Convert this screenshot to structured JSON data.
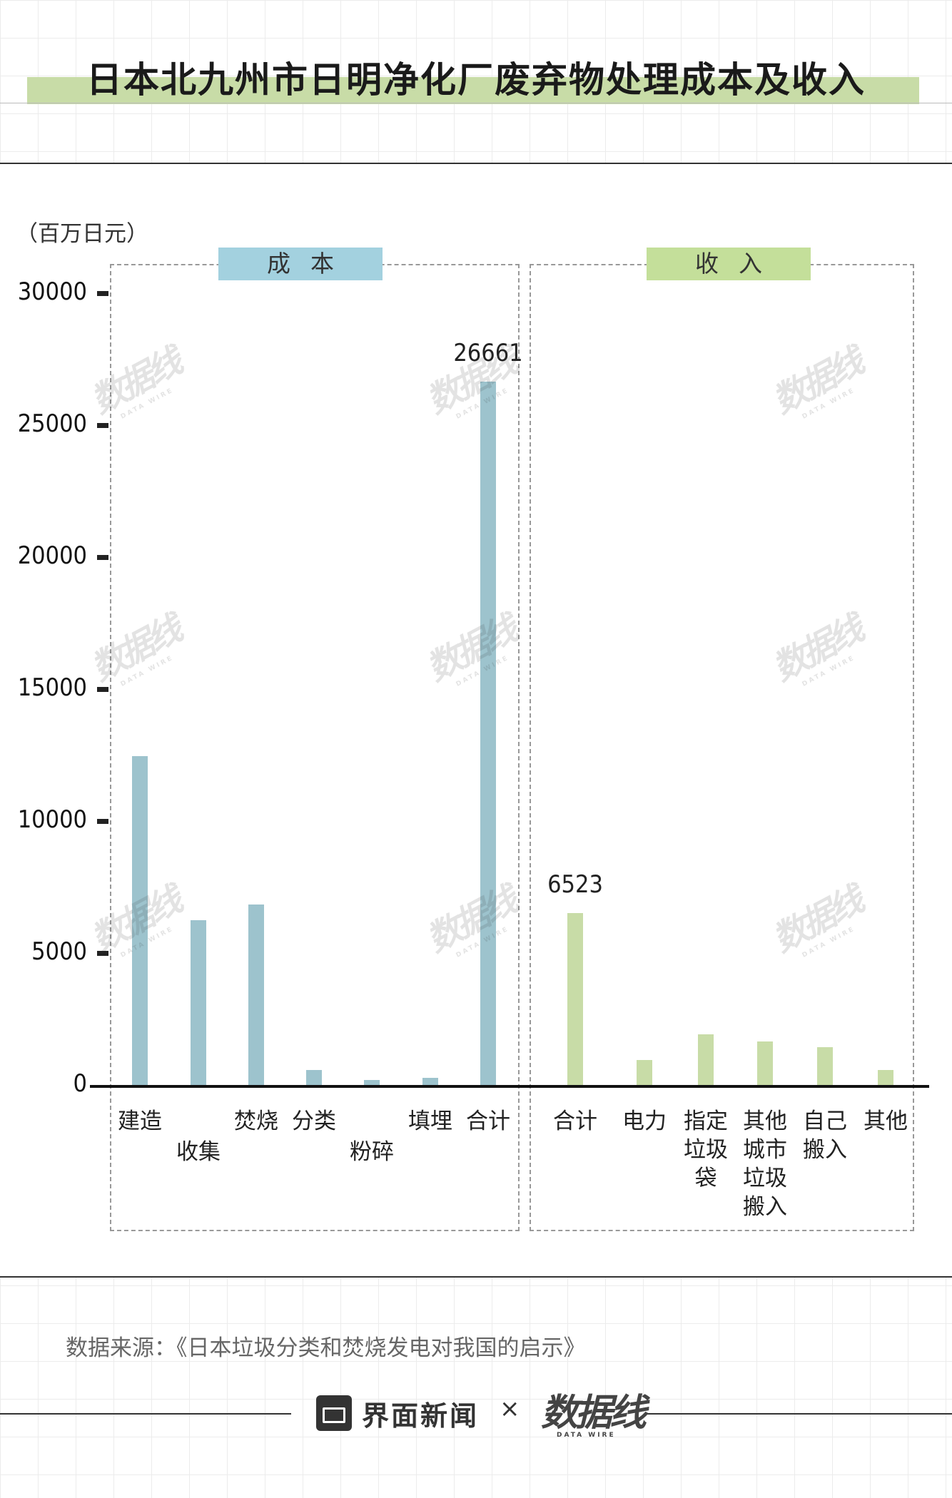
{
  "title": "日本北九州市日明净化厂废弃物处理成本及收入",
  "unit_label": "（百万日元）",
  "panels": {
    "cost": {
      "label": "成本",
      "color": "#9dc3cd",
      "header_color": "#a3d1df"
    },
    "income": {
      "label": "收入",
      "color": "#c8dca7",
      "header_color": "#c4df9a"
    }
  },
  "chart_data": {
    "type": "bar",
    "ylim": [
      0,
      30000
    ],
    "yticks": [
      "0",
      "5000",
      "10000",
      "15000",
      "20000",
      "25000",
      "30000"
    ],
    "grid": false,
    "series": [
      {
        "name": "成本",
        "categories": [
          "建造",
          "收集",
          "焚烧",
          "分类",
          "粉碎",
          "填埋",
          "合计"
        ],
        "values": [
          12450,
          6250,
          6850,
          560,
          200,
          280,
          26661
        ],
        "data_labels": {
          "6": "26661"
        }
      },
      {
        "name": "收入",
        "categories": [
          "合计",
          "电力",
          "指定\n垃圾\n袋",
          "其他\n城市\n垃圾\n搬入",
          "自己\n搬入",
          "其他"
        ],
        "values": [
          6523,
          950,
          1920,
          1640,
          1420,
          560
        ],
        "data_labels": {
          "0": "6523"
        }
      }
    ]
  },
  "source": "数据来源：《日本垃圾分类和焚烧发电对我国的启示》",
  "logos": {
    "jiemian": "界面新闻",
    "times": "×",
    "datawire_cn": "数据线",
    "datawire_en": "DATA WIRE"
  }
}
